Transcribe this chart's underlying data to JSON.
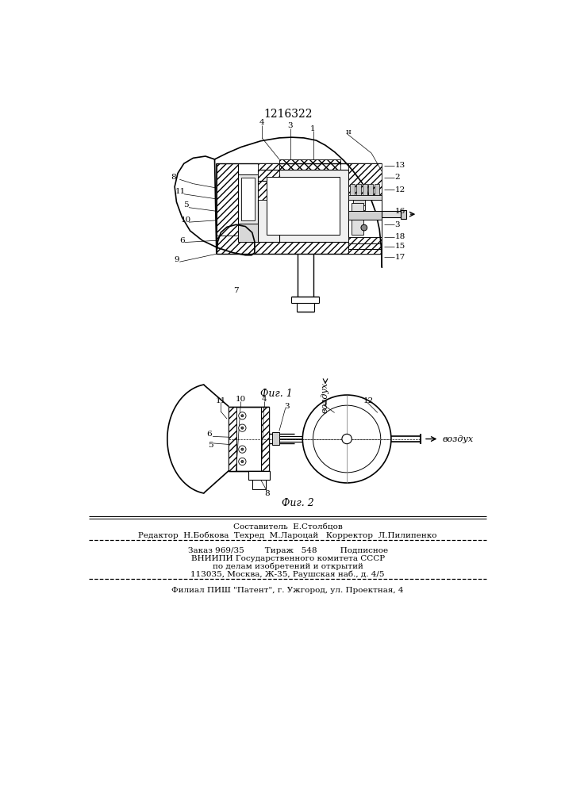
{
  "patent_number": "1216322",
  "bg": "#ffffff",
  "fig1_caption": "Фиг. 1",
  "fig2_caption": "Фиг. 2",
  "vozduh": "воздух",
  "footer_line1": "Составитель  Е.Столбцов",
  "footer_line2": "Редактор  Н.Бобкова  Техред  М.Лароцай   Корректор  Л.Пилипенко",
  "footer_line3": "Заказ 969/35        Тираж   548         Подписное",
  "footer_line4": "ВНИИПИ Государственного комитета СССР",
  "footer_line5": "по делам изобретений и открытий",
  "footer_line6": "113035, Москва, Ж-35, Раушская наб., д. 4/5",
  "footer_line7": "Филиал ПИШ \"Патент\", г. Ужгород, ул. Проектная, 4"
}
